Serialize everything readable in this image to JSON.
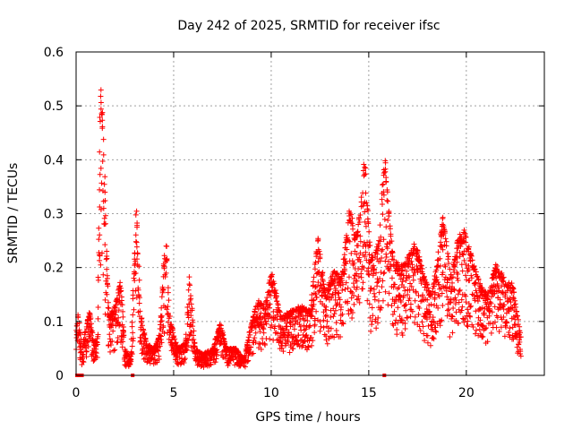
{
  "chart_data": {
    "type": "scatter",
    "title": "Day 242 of 2025, SRMTID for receiver ifsc",
    "xlabel": "GPS time / hours",
    "ylabel": "SRMTID / TECUs",
    "xlim": [
      0,
      24
    ],
    "ylim": [
      0,
      0.6
    ],
    "x_ticks": [
      0,
      5,
      10,
      15,
      20
    ],
    "y_ticks": [
      0,
      0.1,
      0.2,
      0.3,
      0.4,
      0.5,
      0.6
    ],
    "y_tick_labels": [
      "0",
      "0.1",
      "0.2",
      "0.3",
      "0.4",
      "0.5",
      "0.6"
    ],
    "grid": true,
    "marker": "+",
    "series_color": "#ff0000",
    "envelope": [
      [
        0.0,
        0.08
      ],
      [
        0.1,
        0.12
      ],
      [
        0.3,
        0.05
      ],
      [
        0.5,
        0.09
      ],
      [
        0.7,
        0.12
      ],
      [
        0.9,
        0.06
      ],
      [
        1.1,
        0.07
      ],
      [
        1.25,
        0.56
      ],
      [
        1.4,
        0.47
      ],
      [
        1.55,
        0.25
      ],
      [
        1.7,
        0.11
      ],
      [
        2.0,
        0.13
      ],
      [
        2.3,
        0.18
      ],
      [
        2.5,
        0.05
      ],
      [
        2.8,
        0.03
      ],
      [
        3.1,
        0.32
      ],
      [
        3.3,
        0.12
      ],
      [
        3.6,
        0.06
      ],
      [
        4.0,
        0.05
      ],
      [
        4.3,
        0.08
      ],
      [
        4.6,
        0.27
      ],
      [
        4.8,
        0.11
      ],
      [
        5.2,
        0.05
      ],
      [
        5.6,
        0.06
      ],
      [
        5.8,
        0.19
      ],
      [
        6.1,
        0.05
      ],
      [
        6.5,
        0.04
      ],
      [
        7.0,
        0.05
      ],
      [
        7.4,
        0.1
      ],
      [
        7.7,
        0.05
      ],
      [
        8.2,
        0.05
      ],
      [
        8.6,
        0.03
      ],
      [
        9.0,
        0.1
      ],
      [
        9.3,
        0.14
      ],
      [
        9.7,
        0.13
      ],
      [
        10.0,
        0.2
      ],
      [
        10.5,
        0.11
      ],
      [
        11.0,
        0.12
      ],
      [
        11.5,
        0.13
      ],
      [
        12.0,
        0.12
      ],
      [
        12.4,
        0.26
      ],
      [
        12.8,
        0.15
      ],
      [
        13.2,
        0.2
      ],
      [
        13.6,
        0.18
      ],
      [
        14.0,
        0.31
      ],
      [
        14.4,
        0.26
      ],
      [
        14.8,
        0.41
      ],
      [
        15.1,
        0.22
      ],
      [
        15.5,
        0.25
      ],
      [
        15.8,
        0.42
      ],
      [
        16.2,
        0.23
      ],
      [
        16.6,
        0.2
      ],
      [
        17.0,
        0.22
      ],
      [
        17.4,
        0.25
      ],
      [
        17.8,
        0.19
      ],
      [
        18.2,
        0.15
      ],
      [
        18.5,
        0.21
      ],
      [
        18.8,
        0.3
      ],
      [
        19.2,
        0.19
      ],
      [
        19.6,
        0.26
      ],
      [
        19.9,
        0.27
      ],
      [
        20.3,
        0.22
      ],
      [
        20.7,
        0.17
      ],
      [
        21.1,
        0.15
      ],
      [
        21.5,
        0.21
      ],
      [
        22.0,
        0.18
      ],
      [
        22.4,
        0.17
      ],
      [
        22.8,
        0.07
      ]
    ],
    "zero_points": [
      0.05,
      0.1,
      0.15,
      0.2,
      0.25,
      0.3,
      2.9,
      15.8
    ]
  }
}
